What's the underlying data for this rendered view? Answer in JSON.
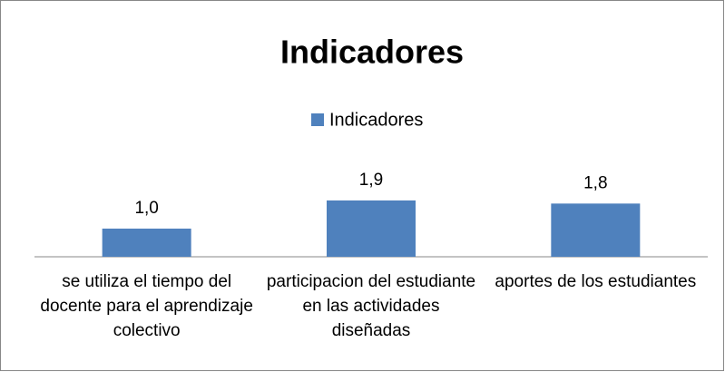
{
  "chart_data": {
    "type": "bar",
    "title": "Indicadores",
    "series": [
      {
        "name": "Indicadores",
        "color": "#4f81bd",
        "values": [
          1.0,
          1.9,
          1.8
        ],
        "value_labels": [
          "1,0",
          "1,9",
          "1,8"
        ]
      }
    ],
    "categories": [
      "se utiliza el tiempo del docente para el aprendizaje colectivo",
      "participacion del estudiante en las actividades diseñadas",
      "aportes de los estudiantes"
    ],
    "ylim": [
      0.1,
      4.1
    ],
    "legend": "top"
  }
}
